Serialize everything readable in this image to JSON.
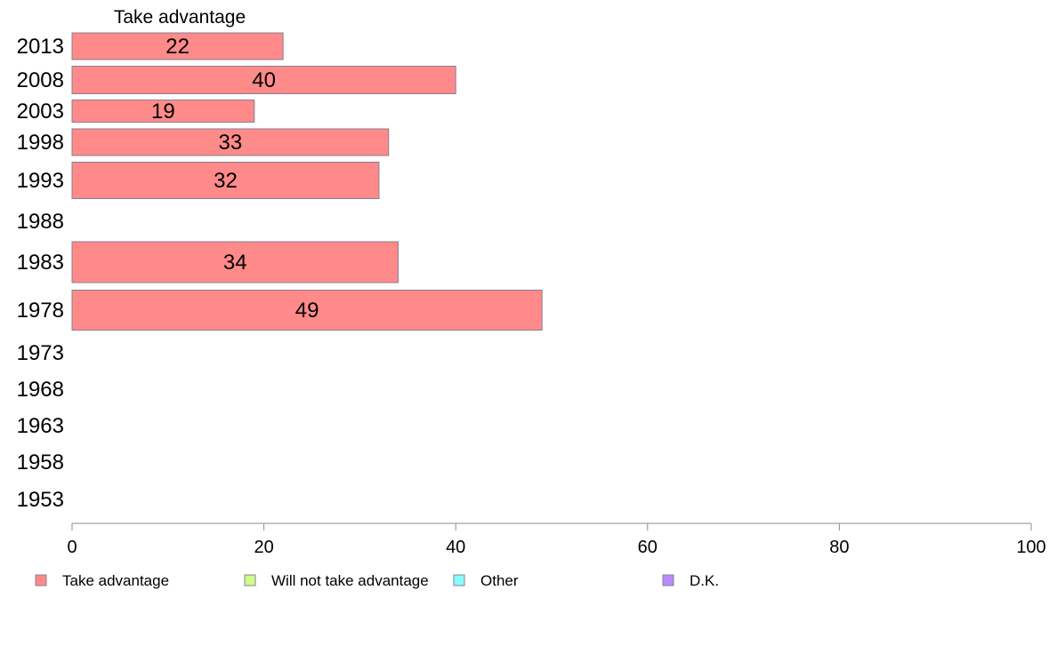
{
  "chart_data": {
    "type": "bar",
    "orientation": "horizontal",
    "panel_title": "Take advantage",
    "categories": [
      "2013",
      "2008",
      "2003",
      "1998",
      "1993",
      "1988",
      "1983",
      "1978",
      "1973",
      "1968",
      "1963",
      "1958",
      "1953"
    ],
    "series": [
      {
        "name": "Take advantage",
        "color": "#ff8a8a",
        "values": [
          22,
          40,
          19,
          33,
          32,
          null,
          34,
          49,
          null,
          null,
          null,
          null,
          null
        ]
      }
    ],
    "xlim": [
      0,
      100
    ],
    "xticks": [
      0,
      20,
      40,
      60,
      80,
      100
    ],
    "grid": false,
    "legend": {
      "position": "bottom",
      "items": [
        {
          "label": "Take advantage",
          "color": "#ff8a8a"
        },
        {
          "label": "Will not take advantage",
          "color": "#ccff88"
        },
        {
          "label": "Other",
          "color": "#88ffff"
        },
        {
          "label": "D.K.",
          "color": "#bb88ff"
        }
      ]
    }
  }
}
